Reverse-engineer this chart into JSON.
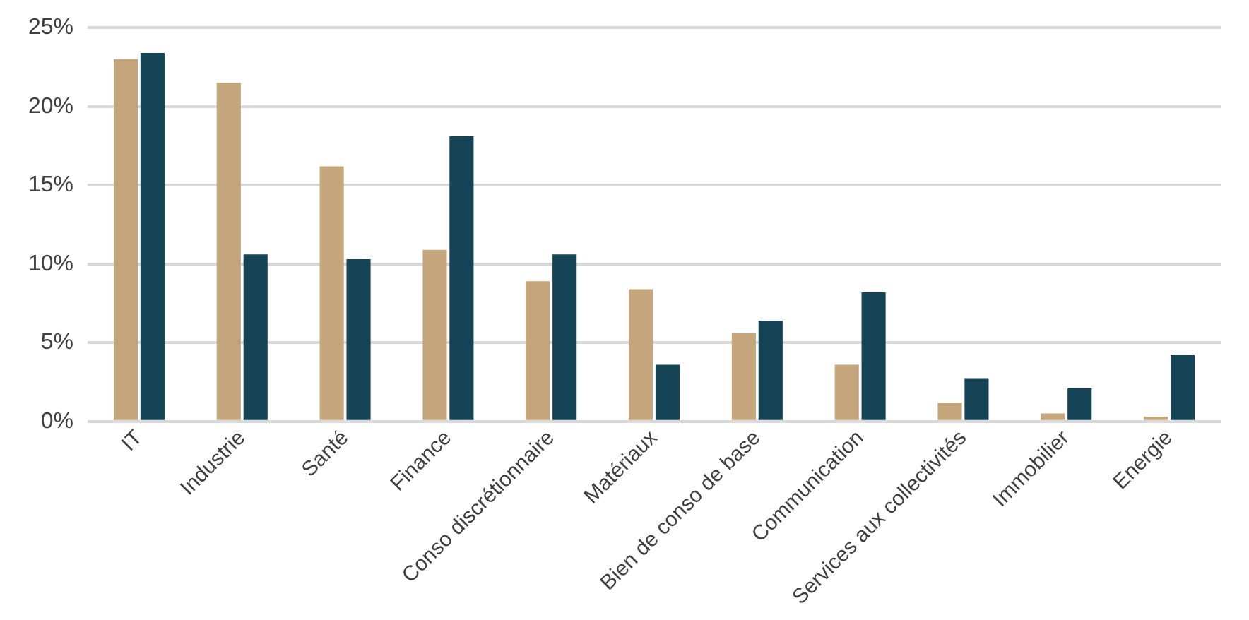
{
  "chart_data": {
    "type": "bar",
    "categories": [
      "IT",
      "Industrie",
      "Santé",
      "Finance",
      "Conso discrétionnaire",
      "Matériaux",
      "Bien de conso de base",
      "Communication",
      "Services aux collectivités",
      "Immobilier",
      "Energie"
    ],
    "series": [
      {
        "color": "#c4a57c",
        "values": [
          23.0,
          21.5,
          16.2,
          10.9,
          8.9,
          8.4,
          5.6,
          3.6,
          1.2,
          0.5,
          0.3
        ]
      },
      {
        "color": "#154457",
        "values": [
          23.4,
          10.6,
          10.3,
          18.1,
          10.6,
          3.6,
          6.4,
          8.2,
          2.7,
          2.1,
          4.2
        ]
      }
    ],
    "ylim": [
      0,
      25
    ],
    "yticks": [
      {
        "value": 0,
        "label": "0%"
      },
      {
        "value": 5,
        "label": "5%"
      },
      {
        "value": 10,
        "label": "10%"
      },
      {
        "value": 15,
        "label": "15%"
      },
      {
        "value": 20,
        "label": "20%"
      },
      {
        "value": 25,
        "label": "25%"
      }
    ],
    "grid": "y"
  }
}
